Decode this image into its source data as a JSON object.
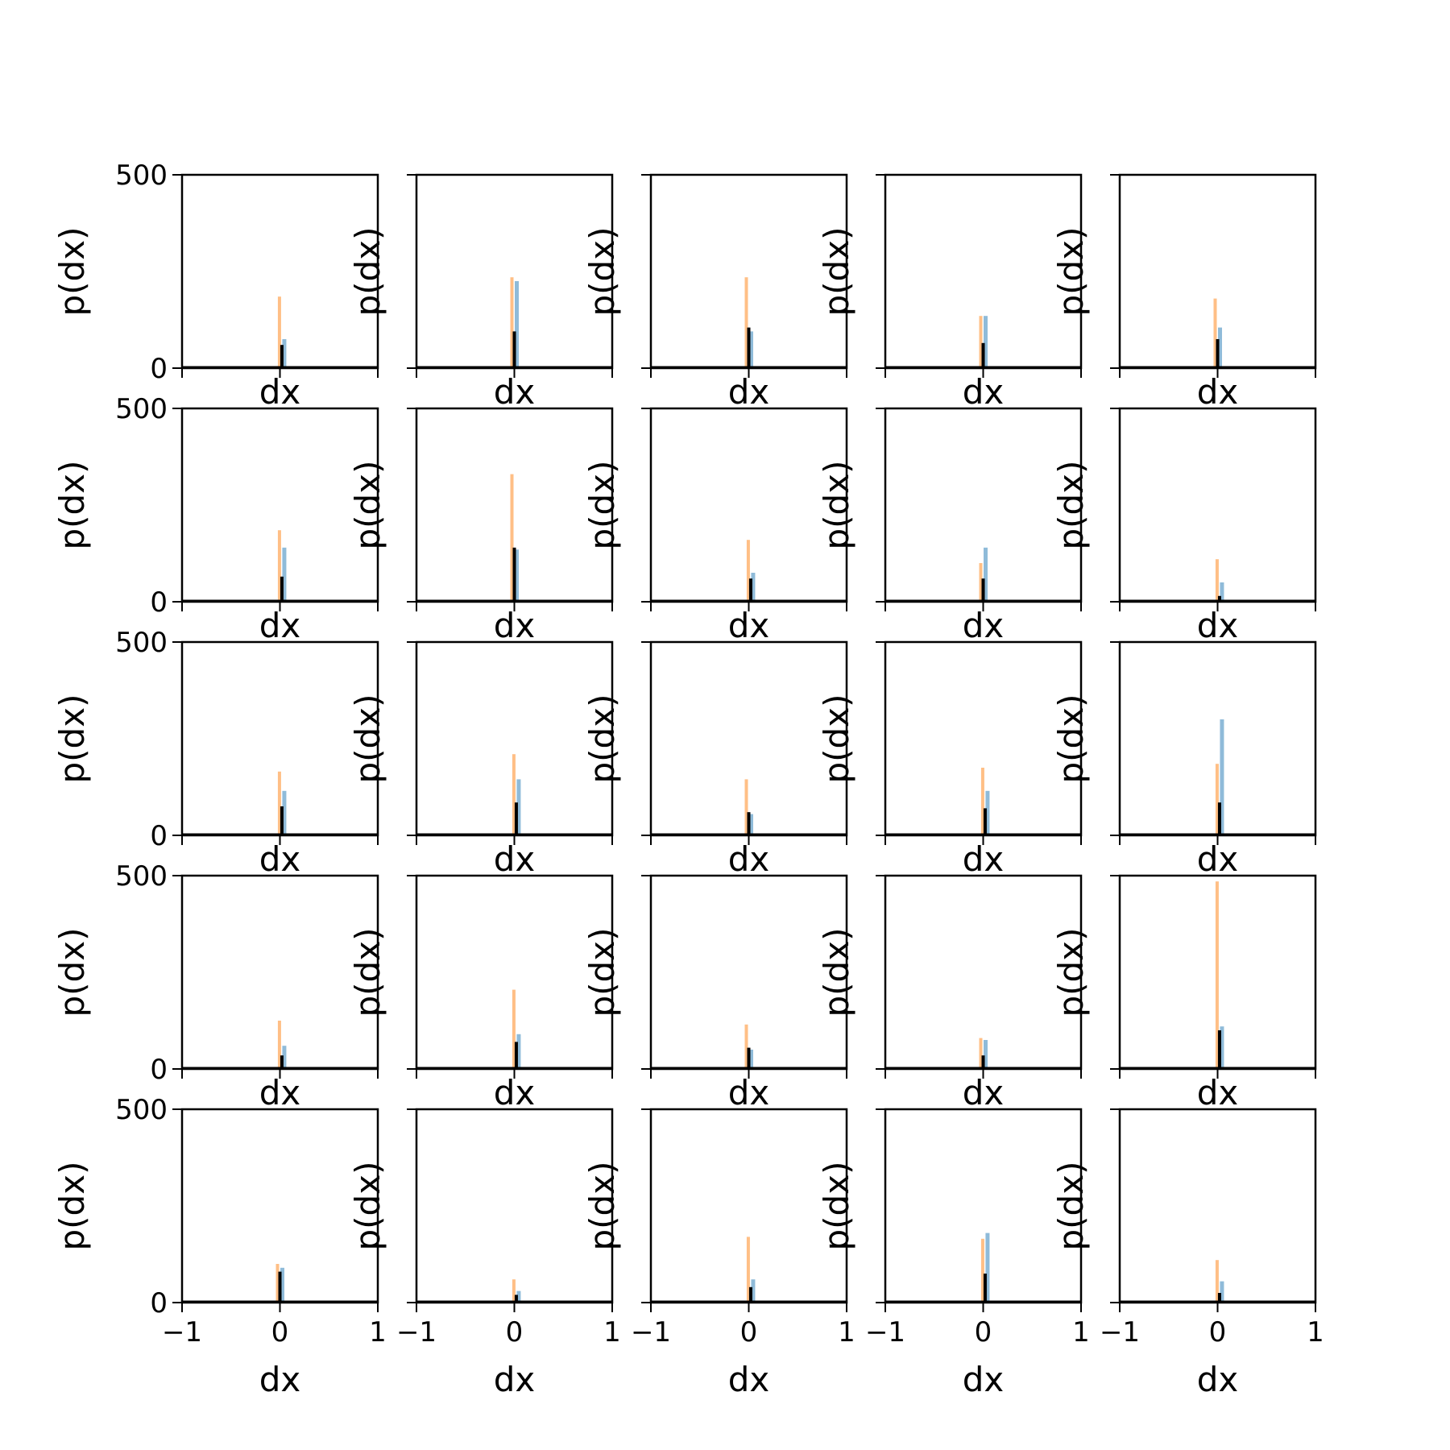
{
  "colors": {
    "series_blue": "#1f77b4",
    "series_orange": "#ff7f0e",
    "series_black": "#000000",
    "axes": "#000000",
    "background": "#ffffff"
  },
  "chart_data": {
    "type": "bar",
    "layout": "5x5 grid of small histograms",
    "xlabel": "dx",
    "ylabel": "p(dx)",
    "xlim": [
      -1,
      1
    ],
    "ylim": [
      0,
      500
    ],
    "x_ticks": [
      "−1",
      "0",
      "1"
    ],
    "y_ticks": [
      "0",
      "500"
    ],
    "grid": false,
    "series": [
      {
        "color_key": "series_blue"
      },
      {
        "color_key": "series_orange"
      },
      {
        "color_key": "series_black"
      }
    ],
    "panels": [
      [
        {
          "x": 0.02,
          "blue": 75,
          "orange": 185,
          "black": 60
        },
        {
          "x": 0.0,
          "blue": 225,
          "orange": 235,
          "black": 95
        },
        {
          "x": 0.0,
          "blue": 95,
          "orange": 235,
          "black": 105
        },
        {
          "x": 0.0,
          "blue": 135,
          "orange": 135,
          "black": 65
        },
        {
          "x": 0.0,
          "blue": 105,
          "orange": 180,
          "black": 75
        }
      ],
      [
        {
          "x": 0.02,
          "blue": 140,
          "orange": 185,
          "black": 65
        },
        {
          "x": 0.0,
          "blue": 135,
          "orange": 330,
          "black": 140
        },
        {
          "x": 0.02,
          "blue": 75,
          "orange": 160,
          "black": 60
        },
        {
          "x": 0.0,
          "blue": 140,
          "orange": 100,
          "black": 60
        },
        {
          "x": 0.02,
          "blue": 50,
          "orange": 110,
          "black": 15
        }
      ],
      [
        {
          "x": 0.02,
          "blue": 115,
          "orange": 165,
          "black": 75
        },
        {
          "x": 0.02,
          "blue": 145,
          "orange": 210,
          "black": 85
        },
        {
          "x": 0.0,
          "blue": 55,
          "orange": 145,
          "black": 60
        },
        {
          "x": 0.02,
          "blue": 115,
          "orange": 175,
          "black": 70
        },
        {
          "x": 0.02,
          "blue": 300,
          "orange": 185,
          "black": 85
        }
      ],
      [
        {
          "x": 0.02,
          "blue": 60,
          "orange": 125,
          "black": 35
        },
        {
          "x": 0.02,
          "blue": 90,
          "orange": 205,
          "black": 70
        },
        {
          "x": 0.0,
          "blue": 50,
          "orange": 115,
          "black": 55
        },
        {
          "x": 0.0,
          "blue": 75,
          "orange": 80,
          "black": 35
        },
        {
          "x": 0.02,
          "blue": 110,
          "orange": 485,
          "black": 100
        }
      ],
      [
        {
          "x": 0.0,
          "blue": 90,
          "orange": 100,
          "black": 80
        },
        {
          "x": 0.02,
          "blue": 30,
          "orange": 60,
          "black": 20
        },
        {
          "x": 0.02,
          "blue": 60,
          "orange": 170,
          "black": 40
        },
        {
          "x": 0.02,
          "blue": 180,
          "orange": 165,
          "black": 75
        },
        {
          "x": 0.02,
          "blue": 55,
          "orange": 110,
          "black": 25
        }
      ]
    ]
  }
}
